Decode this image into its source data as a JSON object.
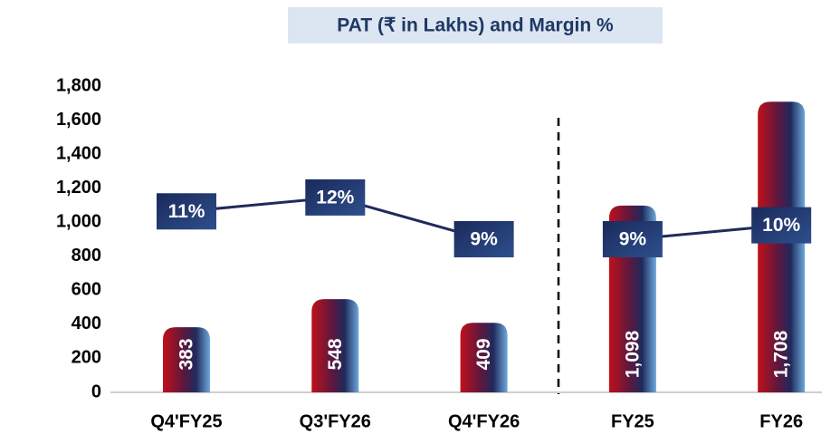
{
  "chart_data": {
    "type": "bar",
    "title": "PAT (₹ in Lakhs) and Margin %",
    "categories": [
      "Q4'FY25",
      "Q3'FY26",
      "Q4'FY26",
      "FY25",
      "FY26"
    ],
    "series": [
      {
        "name": "PAT",
        "type": "bar",
        "values": [
          383,
          548,
          409,
          1098,
          1708
        ],
        "value_labels": [
          "383",
          "548",
          "409",
          "1,098",
          "1,708"
        ]
      },
      {
        "name": "Margin %",
        "type": "line",
        "axis": "y2",
        "color": "#1f2a5c",
        "values": [
          11,
          12,
          9,
          null,
          null
        ],
        "value_labels": [
          "11%",
          "12%",
          "9%",
          null,
          null
        ]
      },
      {
        "name": "Margin %",
        "type": "line",
        "axis": "y2",
        "color": "#1f2a5c",
        "values": [
          null,
          null,
          null,
          9,
          10
        ],
        "value_labels": [
          null,
          null,
          null,
          "9%",
          "10%"
        ]
      }
    ],
    "ylim": [
      0,
      1800
    ],
    "yticks": [
      0,
      200,
      400,
      600,
      800,
      {
        "value": 1000,
        "label": "1,000"
      },
      {
        "value": 1200,
        "label": "1,200"
      },
      {
        "value": 1400,
        "label": "1,400"
      },
      {
        "value": 1600,
        "label": "1,600"
      },
      {
        "value": 1800,
        "label": "1,800"
      }
    ],
    "y2lim": [
      -2,
      20
    ],
    "grid": false
  }
}
